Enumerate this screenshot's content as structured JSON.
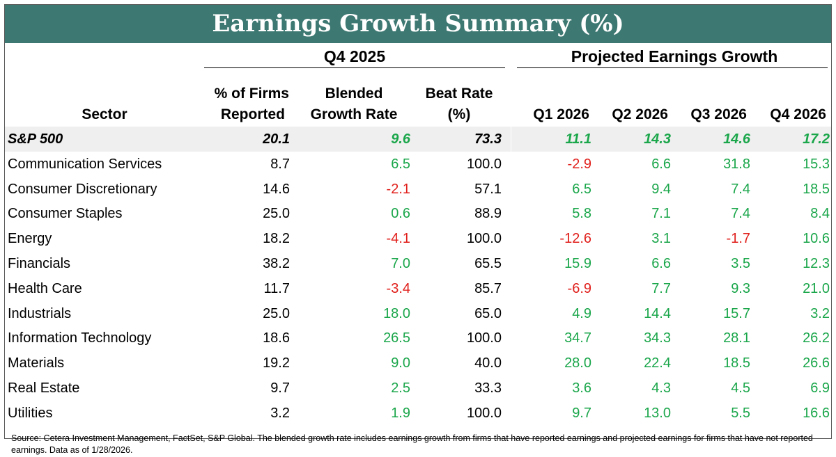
{
  "title": "Earnings Growth Summary (%)",
  "groups": {
    "q4": "Q4 2025",
    "projected": "Projected Earnings Growth"
  },
  "headers": {
    "sector": "Sector",
    "firms_reported": [
      "% of Firms",
      "Reported"
    ],
    "blended": [
      "Blended",
      "Growth Rate"
    ],
    "beat": [
      "Beat Rate",
      "(%)"
    ],
    "q1": "Q1 2026",
    "q2": "Q2 2026",
    "q3": "Q3 2026",
    "q4": "Q4 2026"
  },
  "colors": {
    "title_bg": "#3e7872",
    "positive": "#1aa64a",
    "negative": "#e0201c",
    "highlight_row": "#efefef"
  },
  "chart_data": {
    "type": "table",
    "columns": [
      "Sector",
      "% of Firms Reported",
      "Blended Growth Rate",
      "Beat Rate (%)",
      "Q1 2026",
      "Q2 2026",
      "Q3 2026",
      "Q4 2026"
    ],
    "rows": [
      {
        "sector": "S&P 500",
        "reported": "20.1",
        "blended": "9.6",
        "beat": "73.3",
        "q1": "11.1",
        "q2": "14.3",
        "q3": "14.6",
        "q4": "17.2"
      },
      {
        "sector": "Communication Services",
        "reported": "8.7",
        "blended": "6.5",
        "beat": "100.0",
        "q1": "-2.9",
        "q2": "6.6",
        "q3": "31.8",
        "q4": "15.3"
      },
      {
        "sector": "Consumer Discretionary",
        "reported": "14.6",
        "blended": "-2.1",
        "beat": "57.1",
        "q1": "6.5",
        "q2": "9.4",
        "q3": "7.4",
        "q4": "18.5"
      },
      {
        "sector": "Consumer Staples",
        "reported": "25.0",
        "blended": "0.6",
        "beat": "88.9",
        "q1": "5.8",
        "q2": "7.1",
        "q3": "7.4",
        "q4": "8.4"
      },
      {
        "sector": "Energy",
        "reported": "18.2",
        "blended": "-4.1",
        "beat": "100.0",
        "q1": "-12.6",
        "q2": "3.1",
        "q3": "-1.7",
        "q4": "10.6"
      },
      {
        "sector": "Financials",
        "reported": "38.2",
        "blended": "7.0",
        "beat": "65.5",
        "q1": "15.9",
        "q2": "6.6",
        "q3": "3.5",
        "q4": "12.3"
      },
      {
        "sector": "Health Care",
        "reported": "11.7",
        "blended": "-3.4",
        "beat": "85.7",
        "q1": "-6.9",
        "q2": "7.7",
        "q3": "9.3",
        "q4": "21.0"
      },
      {
        "sector": "Industrials",
        "reported": "25.0",
        "blended": "18.0",
        "beat": "65.0",
        "q1": "4.9",
        "q2": "14.4",
        "q3": "15.7",
        "q4": "3.2"
      },
      {
        "sector": "Information Technology",
        "reported": "18.6",
        "blended": "26.5",
        "beat": "100.0",
        "q1": "34.7",
        "q2": "34.3",
        "q3": "28.1",
        "q4": "26.2"
      },
      {
        "sector": "Materials",
        "reported": "19.2",
        "blended": "9.0",
        "beat": "40.0",
        "q1": "28.0",
        "q2": "22.4",
        "q3": "18.5",
        "q4": "26.6"
      },
      {
        "sector": "Real Estate",
        "reported": "9.7",
        "blended": "2.5",
        "beat": "33.3",
        "q1": "3.6",
        "q2": "4.3",
        "q3": "4.5",
        "q4": "6.9"
      },
      {
        "sector": "Utilities",
        "reported": "3.2",
        "blended": "1.9",
        "beat": "100.0",
        "q1": "9.7",
        "q2": "13.0",
        "q3": "5.5",
        "q4": "16.6"
      }
    ]
  },
  "source": "Source: Cetera Investment Management, FactSet, S&P Global. The blended growth rate includes earnings growth from firms that have reported earnings and projected earnings for firms that have not reported earnings. Data as of 1/28/2026."
}
